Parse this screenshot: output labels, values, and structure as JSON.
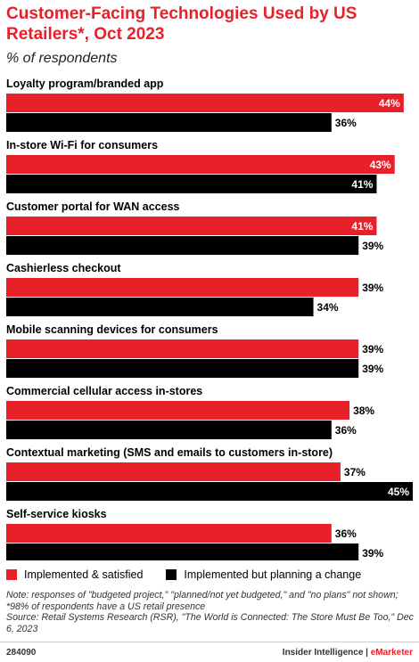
{
  "colors": {
    "implemented": "#e8202a",
    "planning": "#000000"
  },
  "chart_data": {
    "type": "bar",
    "orientation": "horizontal",
    "title": "Customer-Facing Technologies Used by US Retailers*, Oct 2023",
    "subtitle": "% of respondents",
    "categories": [
      "Loyalty program/branded app",
      "In-store Wi-Fi for consumers",
      "Customer portal for WAN access",
      "Cashierless checkout",
      "Mobile scanning devices for consumers",
      "Commercial cellular access in-stores",
      "Contextual marketing (SMS and emails to customers in-store)",
      "Self-service kiosks"
    ],
    "series": [
      {
        "name": "Implemented & satisfied",
        "color": "#e8202a",
        "values": [
          44,
          43,
          41,
          39,
          39,
          38,
          37,
          36
        ]
      },
      {
        "name": "Implemented but planning a change",
        "color": "#000000",
        "values": [
          36,
          41,
          39,
          34,
          39,
          36,
          45,
          39
        ]
      }
    ],
    "value_suffix": "%",
    "xlim": [
      0,
      45
    ],
    "grid": false,
    "legend_position": "bottom"
  },
  "notes": {
    "note": "Note: responses of \"budgeted project,\" \"planned/not yet budgeted,\" and \"no plans\" not shown; *98% of respondents have a US retail presence",
    "source": "Source: Retail Systems Research (RSR), \"The World is Connected: The Store Must Be Too,\" Dec 6, 2023"
  },
  "footer": {
    "id": "284090",
    "brand_main": "Insider Intelligence | ",
    "brand_accent": "eMarketer"
  }
}
